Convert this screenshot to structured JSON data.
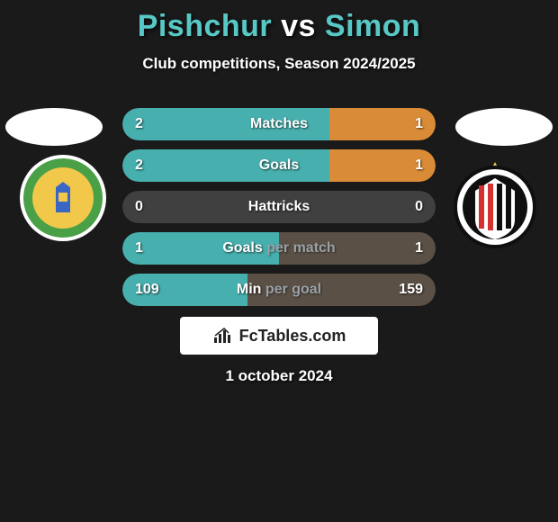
{
  "title": {
    "player1": "Pishchur",
    "vs": "vs",
    "player2": "Simon"
  },
  "subtitle": "Club competitions, Season 2024/2025",
  "date": "1 october 2024",
  "brand": "FcTables.com",
  "colors": {
    "title_player": "#58c8c6",
    "title_vs": "#ffffff",
    "body_text": "#ffffff",
    "label_grey": "#9aa0a6",
    "background": "#1a1a1a",
    "bar_left": "#47b0ae",
    "bar_right_hi": "#d98b37",
    "bar_right_lo": "#5a5046",
    "bar_empty": "#2c2c2c",
    "brand_bg": "#ffffff",
    "brand_text": "#222222"
  },
  "badges": {
    "left": {
      "outer_bg": "#ffffff",
      "ring": "#4aa047",
      "inner_bg": "#f2c84b",
      "crest": "#3a66c4"
    },
    "right": {
      "outer_bg": "#0f0f0f",
      "ring": "#ffffff",
      "stripes": [
        "#d43131",
        "#0f0f0f"
      ],
      "star": "#f2c84b"
    }
  },
  "stats": [
    {
      "label": "Matches",
      "left_val": "2",
      "right_val": "1",
      "left_pct": 66,
      "right_pct": 34,
      "left_color": "#47b0ae",
      "right_color": "#d98b37",
      "bg_color": "#2c2c2c"
    },
    {
      "label": "Goals",
      "left_val": "2",
      "right_val": "1",
      "left_pct": 66,
      "right_pct": 34,
      "left_color": "#47b0ae",
      "right_color": "#d98b37",
      "bg_color": "#2c2c2c"
    },
    {
      "label": "Hattricks",
      "left_val": "0",
      "right_val": "0",
      "left_pct": 0,
      "right_pct": 0,
      "left_color": "#47b0ae",
      "right_color": "#d98b37",
      "bg_color": "#404040"
    },
    {
      "label_parts": [
        "Goals ",
        "per match"
      ],
      "left_val": "1",
      "right_val": "1",
      "left_pct": 50,
      "right_pct": 50,
      "left_color": "#47b0ae",
      "right_color": "#5a5046",
      "bg_color": "#2c2c2c"
    },
    {
      "label_parts": [
        "Min ",
        "per goal"
      ],
      "left_val": "109",
      "right_val": "159",
      "left_pct": 40,
      "right_pct": 60,
      "left_color": "#47b0ae",
      "right_color": "#5a5046",
      "bg_color": "#2c2c2c"
    }
  ]
}
